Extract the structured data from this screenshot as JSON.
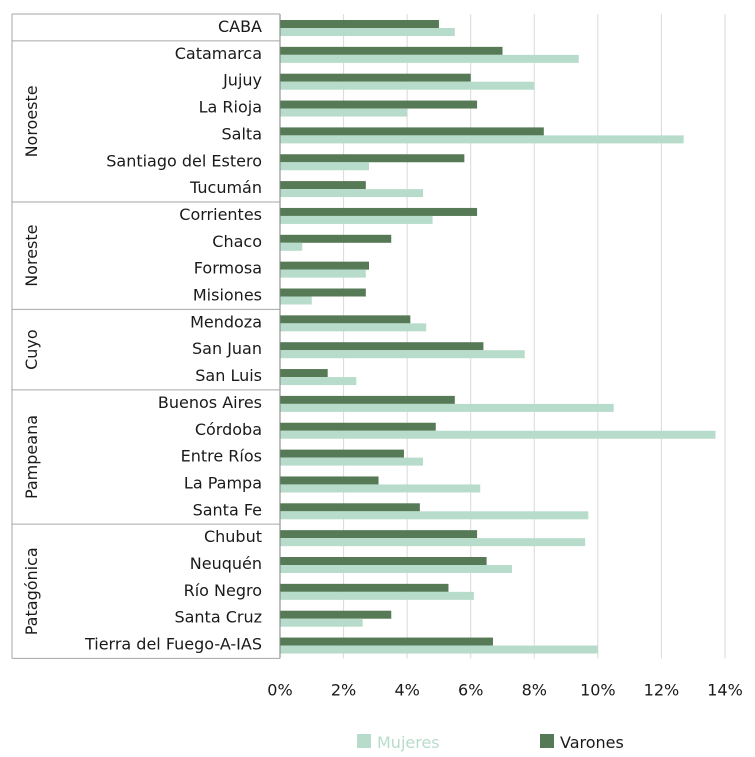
{
  "chart_data": {
    "type": "bar",
    "orientation": "horizontal",
    "x_ticks": [
      "0%",
      "2%",
      "4%",
      "6%",
      "8%",
      "10%",
      "12%",
      "14%"
    ],
    "xlim": [
      0,
      14
    ],
    "grid": "vertical",
    "legend_position": "bottom",
    "groups": [
      {
        "label": "",
        "categories": [
          "CABA"
        ]
      },
      {
        "label": "Noroeste",
        "categories": [
          "Catamarca",
          "Jujuy",
          "La Rioja",
          "Salta",
          "Santiago del Estero",
          "Tucumán"
        ]
      },
      {
        "label": "Noreste",
        "categories": [
          "Corrientes",
          "Chaco",
          "Formosa",
          "Misiones"
        ]
      },
      {
        "label": "Cuyo",
        "categories": [
          "Mendoza",
          "San Juan",
          "San Luis"
        ]
      },
      {
        "label": "Pampeana",
        "categories": [
          "Buenos Aires",
          "Córdoba",
          "Entre Ríos",
          "La Pampa",
          "Santa Fe"
        ]
      },
      {
        "label": "Patagónica",
        "categories": [
          "Chubut",
          "Neuquén",
          "Río Negro",
          "Santa Cruz",
          "Tierra del Fuego-A-IAS"
        ]
      }
    ],
    "categories": [
      "CABA",
      "Catamarca",
      "Jujuy",
      "La Rioja",
      "Salta",
      "Santiago del Estero",
      "Tucumán",
      "Corrientes",
      "Chaco",
      "Formosa",
      "Misiones",
      "Mendoza",
      "San Juan",
      "San Luis",
      "Buenos Aires",
      "Córdoba",
      "Entre Ríos",
      "La Pampa",
      "Santa Fe",
      "Chubut",
      "Neuquén",
      "Río Negro",
      "Santa Cruz",
      "Tierra del Fuego-A-IAS"
    ],
    "series": [
      {
        "name": "Mujeres",
        "color": "#b8dccb",
        "values": [
          5.5,
          9.4,
          8.0,
          4.0,
          12.7,
          2.8,
          4.5,
          4.8,
          0.7,
          2.7,
          1.0,
          4.6,
          7.7,
          2.4,
          10.5,
          13.7,
          4.5,
          6.3,
          9.7,
          9.6,
          7.3,
          6.1,
          2.6,
          10.0
        ]
      },
      {
        "name": "Varones",
        "color": "#567a56",
        "values": [
          5.0,
          7.0,
          6.0,
          6.2,
          8.3,
          5.8,
          2.7,
          6.2,
          3.5,
          2.8,
          2.7,
          4.1,
          6.4,
          1.5,
          5.5,
          4.9,
          3.9,
          3.1,
          4.4,
          6.2,
          6.5,
          5.3,
          3.5,
          6.7
        ]
      }
    ]
  }
}
